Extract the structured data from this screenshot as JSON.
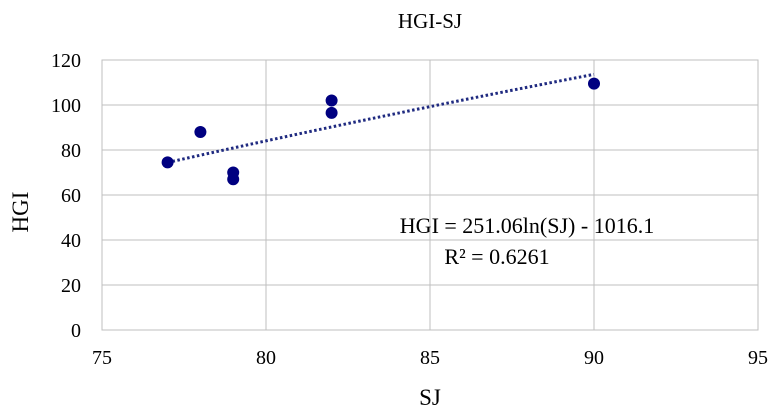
{
  "chart_data": {
    "type": "scatter",
    "title": "HGI-SJ",
    "xlabel": "SJ",
    "ylabel": "HGI",
    "xlim": [
      75,
      95
    ],
    "ylim": [
      0,
      120
    ],
    "xticks": [
      75,
      80,
      85,
      90,
      95
    ],
    "yticks": [
      0,
      20,
      40,
      60,
      80,
      100,
      120
    ],
    "grid": true,
    "point_color": "#000080",
    "trend_color": "#1f2a80",
    "points": [
      {
        "x": 77,
        "y": 74.5
      },
      {
        "x": 78,
        "y": 88
      },
      {
        "x": 79,
        "y": 70
      },
      {
        "x": 79,
        "y": 67
      },
      {
        "x": 82,
        "y": 102
      },
      {
        "x": 82,
        "y": 96.5
      },
      {
        "x": 90,
        "y": 109.5
      }
    ],
    "trendline": {
      "type": "logarithmic",
      "a": 251.06,
      "b": -1016.1,
      "x_range": [
        77,
        90
      ]
    },
    "annotations": {
      "equation": "HGI = 251.06ln(SJ) - 1016.1",
      "r_squared": "R² = 0.6261"
    }
  }
}
